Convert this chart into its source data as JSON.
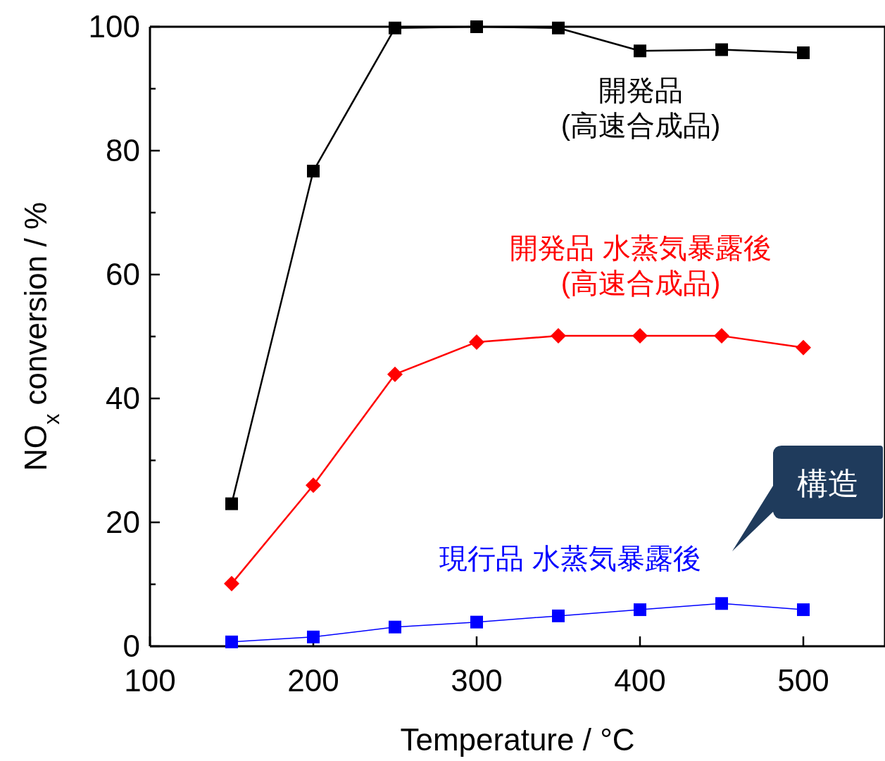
{
  "chart_data": {
    "type": "line",
    "xlabel": "Temperature / °C",
    "ylabel": "NO$_{x}$ conversion / %",
    "x": [
      150,
      200,
      250,
      300,
      350,
      400,
      450,
      500
    ],
    "xlim": [
      100,
      550
    ],
    "ylim": [
      0,
      100
    ],
    "xticks": [
      100,
      200,
      300,
      400,
      500
    ],
    "yticks": [
      0,
      {
        "value": 10,
        "label": null
      },
      20,
      {
        "value": 30,
        "label": null
      },
      40,
      {
        "value": 50,
        "label": null
      },
      60,
      {
        "value": 70,
        "label": null
      },
      80,
      {
        "value": 90,
        "label": null
      },
      100
    ],
    "grid": false,
    "legend": false,
    "marker": "square",
    "line_style": "solid",
    "series": [
      {
        "name": "開発品\n(高速合成品)",
        "color": "#000000",
        "values": [
          23,
          76.7,
          99.8,
          100,
          99.8,
          96.1,
          96.3,
          95.8
        ]
      },
      {
        "name": "開発品 水蒸気暴露後\n(高速合成品)",
        "color": "#ff0000",
        "marker": "diamond",
        "values": [
          10.1,
          26,
          43.9,
          49.1,
          50.1,
          50.1,
          50.1,
          48.2
        ]
      },
      {
        "name": "現行品 水蒸気暴露後",
        "color": "#0000ff",
        "values": [
          0.7,
          1.5,
          3.1,
          3.9,
          4.9,
          5.9,
          6.9,
          5.9
        ]
      }
    ],
    "annotations": [
      "構造"
    ]
  }
}
